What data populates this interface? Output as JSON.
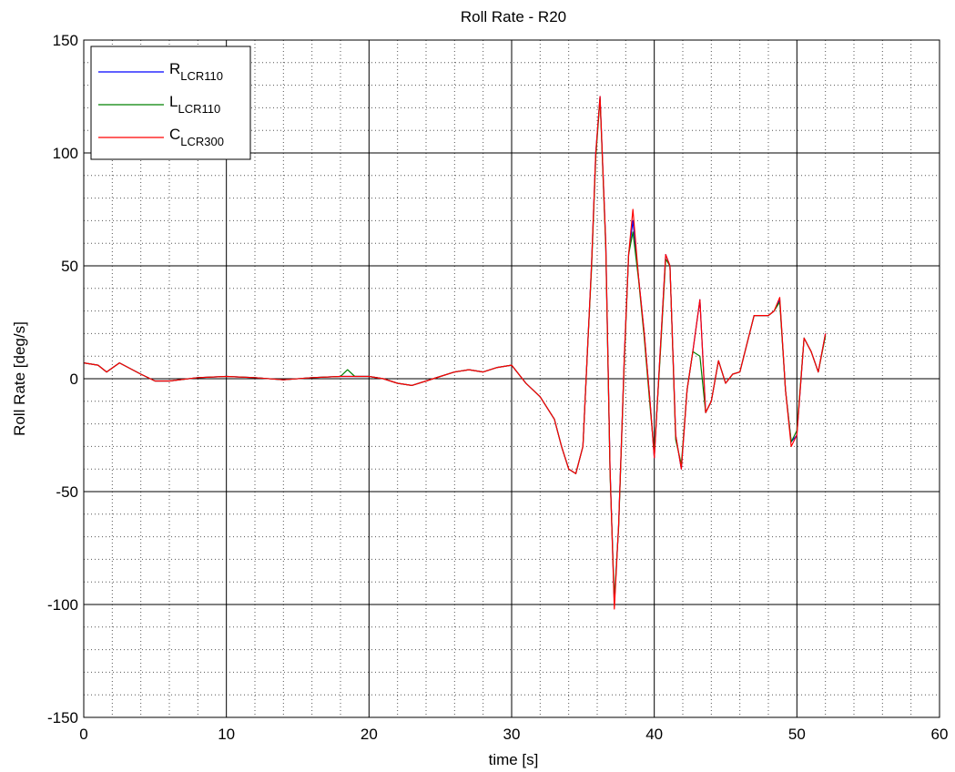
{
  "chart_data": {
    "type": "line",
    "title": "Roll Rate - R20",
    "xlabel": "time [s]",
    "ylabel": "Roll Rate [deg/s]",
    "xlim": [
      0,
      60
    ],
    "ylim": [
      -150,
      150
    ],
    "xticks": [
      0,
      10,
      20,
      30,
      40,
      50,
      60
    ],
    "yticks": [
      -150,
      -100,
      -50,
      0,
      50,
      100,
      150
    ],
    "xtick_labels": [
      "0",
      "10",
      "20",
      "30",
      "40",
      "50",
      "60"
    ],
    "ytick_labels": [
      "-150",
      "-100",
      "-50",
      "0",
      "50",
      "100",
      "150"
    ],
    "grid": true,
    "minor_grid": true,
    "legend_position": "top-left",
    "series": [
      {
        "name": "R",
        "name_subscript": "LCR110",
        "color": "#0000ff",
        "x": [
          0,
          1,
          1.6,
          2.5,
          4,
          5,
          6,
          8,
          10,
          12,
          14,
          16,
          18,
          20,
          21,
          22,
          23,
          24,
          25,
          26,
          27,
          28,
          29,
          30,
          31,
          32,
          33,
          33.5,
          34,
          34.5,
          35,
          35.3,
          35.6,
          35.9,
          36.2,
          36.6,
          36.9,
          37.2,
          37.5,
          37.9,
          38.2,
          38.5,
          38.9,
          39.3,
          39.7,
          40,
          40.4,
          40.8,
          41.1,
          41.5,
          41.9,
          42.3,
          42.7,
          43.2,
          43.6,
          44,
          44.5,
          45,
          45.5,
          46,
          47,
          48,
          48.4,
          48.8,
          49.2,
          49.6,
          50,
          50.5,
          51,
          51.5,
          52
        ],
        "y": [
          7,
          6,
          3,
          7,
          2,
          -1,
          -1,
          0.5,
          1,
          0.5,
          -0.5,
          0.5,
          1,
          1,
          0,
          -2,
          -3,
          -1,
          1,
          3,
          4,
          3,
          5,
          6,
          -2,
          -8,
          -18,
          -30,
          -40,
          -42,
          -30,
          10,
          50,
          100,
          125,
          60,
          -40,
          -100,
          -65,
          10,
          55,
          70,
          45,
          20,
          -10,
          -35,
          10,
          55,
          50,
          -25,
          -40,
          -5,
          12,
          35,
          -15,
          -10,
          8,
          -2,
          2,
          3,
          28,
          28,
          30,
          35,
          -5,
          -28,
          -25,
          18,
          12,
          3,
          20
        ]
      },
      {
        "name": "L",
        "name_subscript": "LCR110",
        "color": "#008000",
        "x": [
          0,
          1,
          1.6,
          2.5,
          4,
          5,
          6,
          8,
          10,
          12,
          14,
          16,
          18,
          18.5,
          19,
          20,
          21,
          22,
          23,
          24,
          25,
          26,
          27,
          28,
          29,
          30,
          31,
          32,
          33,
          33.5,
          34,
          34.5,
          35,
          35.3,
          35.6,
          35.9,
          36.2,
          36.6,
          36.9,
          37.2,
          37.5,
          37.9,
          38.2,
          38.5,
          38.9,
          39.3,
          39.7,
          40,
          40.4,
          40.8,
          41.1,
          41.5,
          41.9,
          42.3,
          42.7,
          43.2,
          43.6,
          44,
          44.5,
          45,
          45.5,
          46,
          47,
          48,
          48.4,
          48.8,
          49.2,
          49.6,
          50,
          50.5,
          51,
          51.5,
          52
        ],
        "y": [
          7,
          6,
          3,
          7,
          2,
          -1,
          -1,
          0.5,
          1,
          0.5,
          -0.5,
          0.5,
          1,
          4,
          1,
          1,
          0,
          -2,
          -3,
          -1,
          1,
          3,
          4,
          3,
          5,
          6,
          -2,
          -8,
          -18,
          -30,
          -40,
          -42,
          -30,
          10,
          48,
          98,
          124,
          58,
          -42,
          -98,
          -66,
          8,
          55,
          65,
          44,
          18,
          -12,
          -33,
          8,
          53,
          50,
          -27,
          -38,
          -5,
          12,
          10,
          -15,
          -10,
          8,
          -2,
          2,
          3,
          28,
          28,
          30,
          34,
          -5,
          -28,
          -23,
          18,
          12,
          3,
          19
        ]
      },
      {
        "name": "C",
        "name_subscript": "LCR300",
        "color": "#ff0000",
        "x": [
          0,
          1,
          1.6,
          2.5,
          4,
          5,
          6,
          8,
          10,
          12,
          14,
          16,
          18,
          20,
          21,
          22,
          23,
          24,
          25,
          26,
          27,
          28,
          29,
          30,
          31,
          32,
          33,
          33.5,
          34,
          34.5,
          35,
          35.3,
          35.6,
          35.9,
          36.2,
          36.6,
          36.9,
          37.2,
          37.5,
          37.9,
          38.2,
          38.5,
          38.9,
          39.3,
          39.7,
          40,
          40.4,
          40.8,
          41.1,
          41.5,
          41.9,
          42.3,
          42.7,
          43.2,
          43.6,
          44,
          44.5,
          45,
          45.5,
          46,
          47,
          48,
          48.4,
          48.8,
          49.2,
          49.6,
          50,
          50.5,
          51,
          51.5,
          52
        ],
        "y": [
          7,
          6,
          3,
          7,
          2,
          -1,
          -1,
          0.5,
          1,
          0.5,
          -0.5,
          0.5,
          1,
          1,
          0,
          -2,
          -3,
          -1,
          1,
          3,
          4,
          3,
          5,
          6,
          -2,
          -8,
          -18,
          -30,
          -40,
          -42,
          -30,
          10,
          50,
          100,
          125,
          60,
          -40,
          -102,
          -65,
          10,
          55,
          75,
          45,
          20,
          -10,
          -35,
          10,
          55,
          50,
          -25,
          -40,
          -5,
          12,
          35,
          -15,
          -10,
          8,
          -2,
          2,
          3,
          28,
          28,
          30,
          36,
          -5,
          -30,
          -25,
          18,
          12,
          3,
          20
        ]
      }
    ]
  }
}
